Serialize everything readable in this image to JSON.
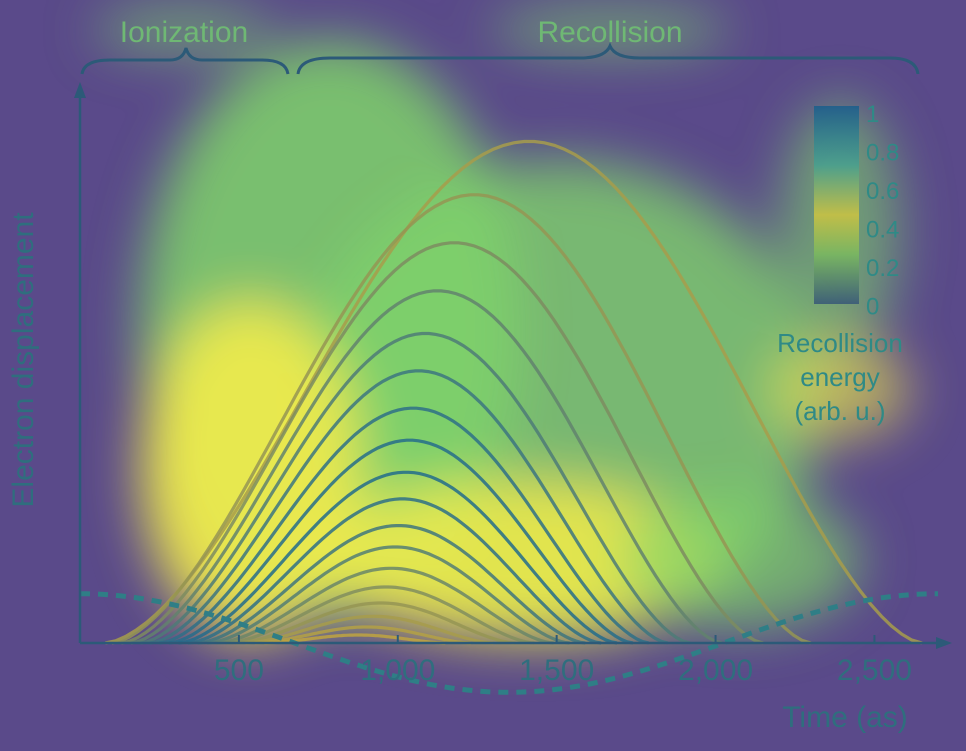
{
  "chart_data": {
    "type": "line",
    "xlabel": "Time (as)",
    "ylabel": "Electron displacement",
    "xlim": [
      0,
      2700
    ],
    "ylim": [
      0,
      1
    ],
    "x_ticks": [
      "500",
      "1,000",
      "1,500",
      "2,000",
      "2,500"
    ],
    "x_tick_values": [
      500,
      1000,
      1500,
      2000,
      2500
    ],
    "phases": [
      {
        "label": "Ionization",
        "x_start": 0,
        "x_end": 650
      },
      {
        "label": "Recollision",
        "x_start": 700,
        "x_end": 2650
      }
    ],
    "trajectories": {
      "description": "",
      "series": [
        {
          "t_start": 80,
          "t_end": 2650,
          "peak": 0.94,
          "energy": 0.2
        },
        {
          "t_start": 100,
          "t_end": 2300,
          "peak": 0.84,
          "energy": 0.3
        },
        {
          "t_start": 130,
          "t_end": 2150,
          "peak": 0.75,
          "energy": 0.45
        },
        {
          "t_start": 160,
          "t_end": 2020,
          "peak": 0.66,
          "energy": 0.6
        },
        {
          "t_start": 190,
          "t_end": 1920,
          "peak": 0.58,
          "energy": 0.72
        },
        {
          "t_start": 220,
          "t_end": 1850,
          "peak": 0.51,
          "energy": 0.82
        },
        {
          "t_start": 250,
          "t_end": 1790,
          "peak": 0.44,
          "energy": 0.9
        },
        {
          "t_start": 280,
          "t_end": 1740,
          "peak": 0.38,
          "energy": 0.95
        },
        {
          "t_start": 310,
          "t_end": 1690,
          "peak": 0.32,
          "energy": 0.97
        },
        {
          "t_start": 340,
          "t_end": 1640,
          "peak": 0.27,
          "energy": 0.9
        },
        {
          "t_start": 370,
          "t_end": 1590,
          "peak": 0.22,
          "energy": 0.8
        },
        {
          "t_start": 400,
          "t_end": 1540,
          "peak": 0.18,
          "energy": 0.68
        },
        {
          "t_start": 430,
          "t_end": 1490,
          "peak": 0.14,
          "energy": 0.55
        },
        {
          "t_start": 460,
          "t_end": 1430,
          "peak": 0.105,
          "energy": 0.42
        },
        {
          "t_start": 490,
          "t_end": 1370,
          "peak": 0.075,
          "energy": 0.3
        },
        {
          "t_start": 520,
          "t_end": 1300,
          "peak": 0.05,
          "energy": 0.2
        },
        {
          "t_start": 550,
          "t_end": 1230,
          "peak": 0.03,
          "energy": 0.12
        },
        {
          "t_start": 580,
          "t_end": 1150,
          "peak": 0.015,
          "energy": 0.06
        }
      ]
    },
    "field": {
      "style": "dashed",
      "description": "",
      "amplitude": 0.18,
      "period": 2700
    },
    "colorbar": {
      "ticks": [
        "1",
        "0.8",
        "0.6",
        "0.4",
        "0.2",
        "0"
      ],
      "label_lines": [
        "Recollision",
        "energy",
        "(arb. u.)"
      ]
    },
    "colors": {
      "background": "#5a4a8a",
      "axis": "#2c5a78",
      "trajectory_low": "#c9a83a",
      "trajectory_high": "#1d6a8f",
      "heat_hot": "#f4ec4a",
      "heat_warm": "#7fd36a",
      "text": "#2f6e7e"
    }
  }
}
